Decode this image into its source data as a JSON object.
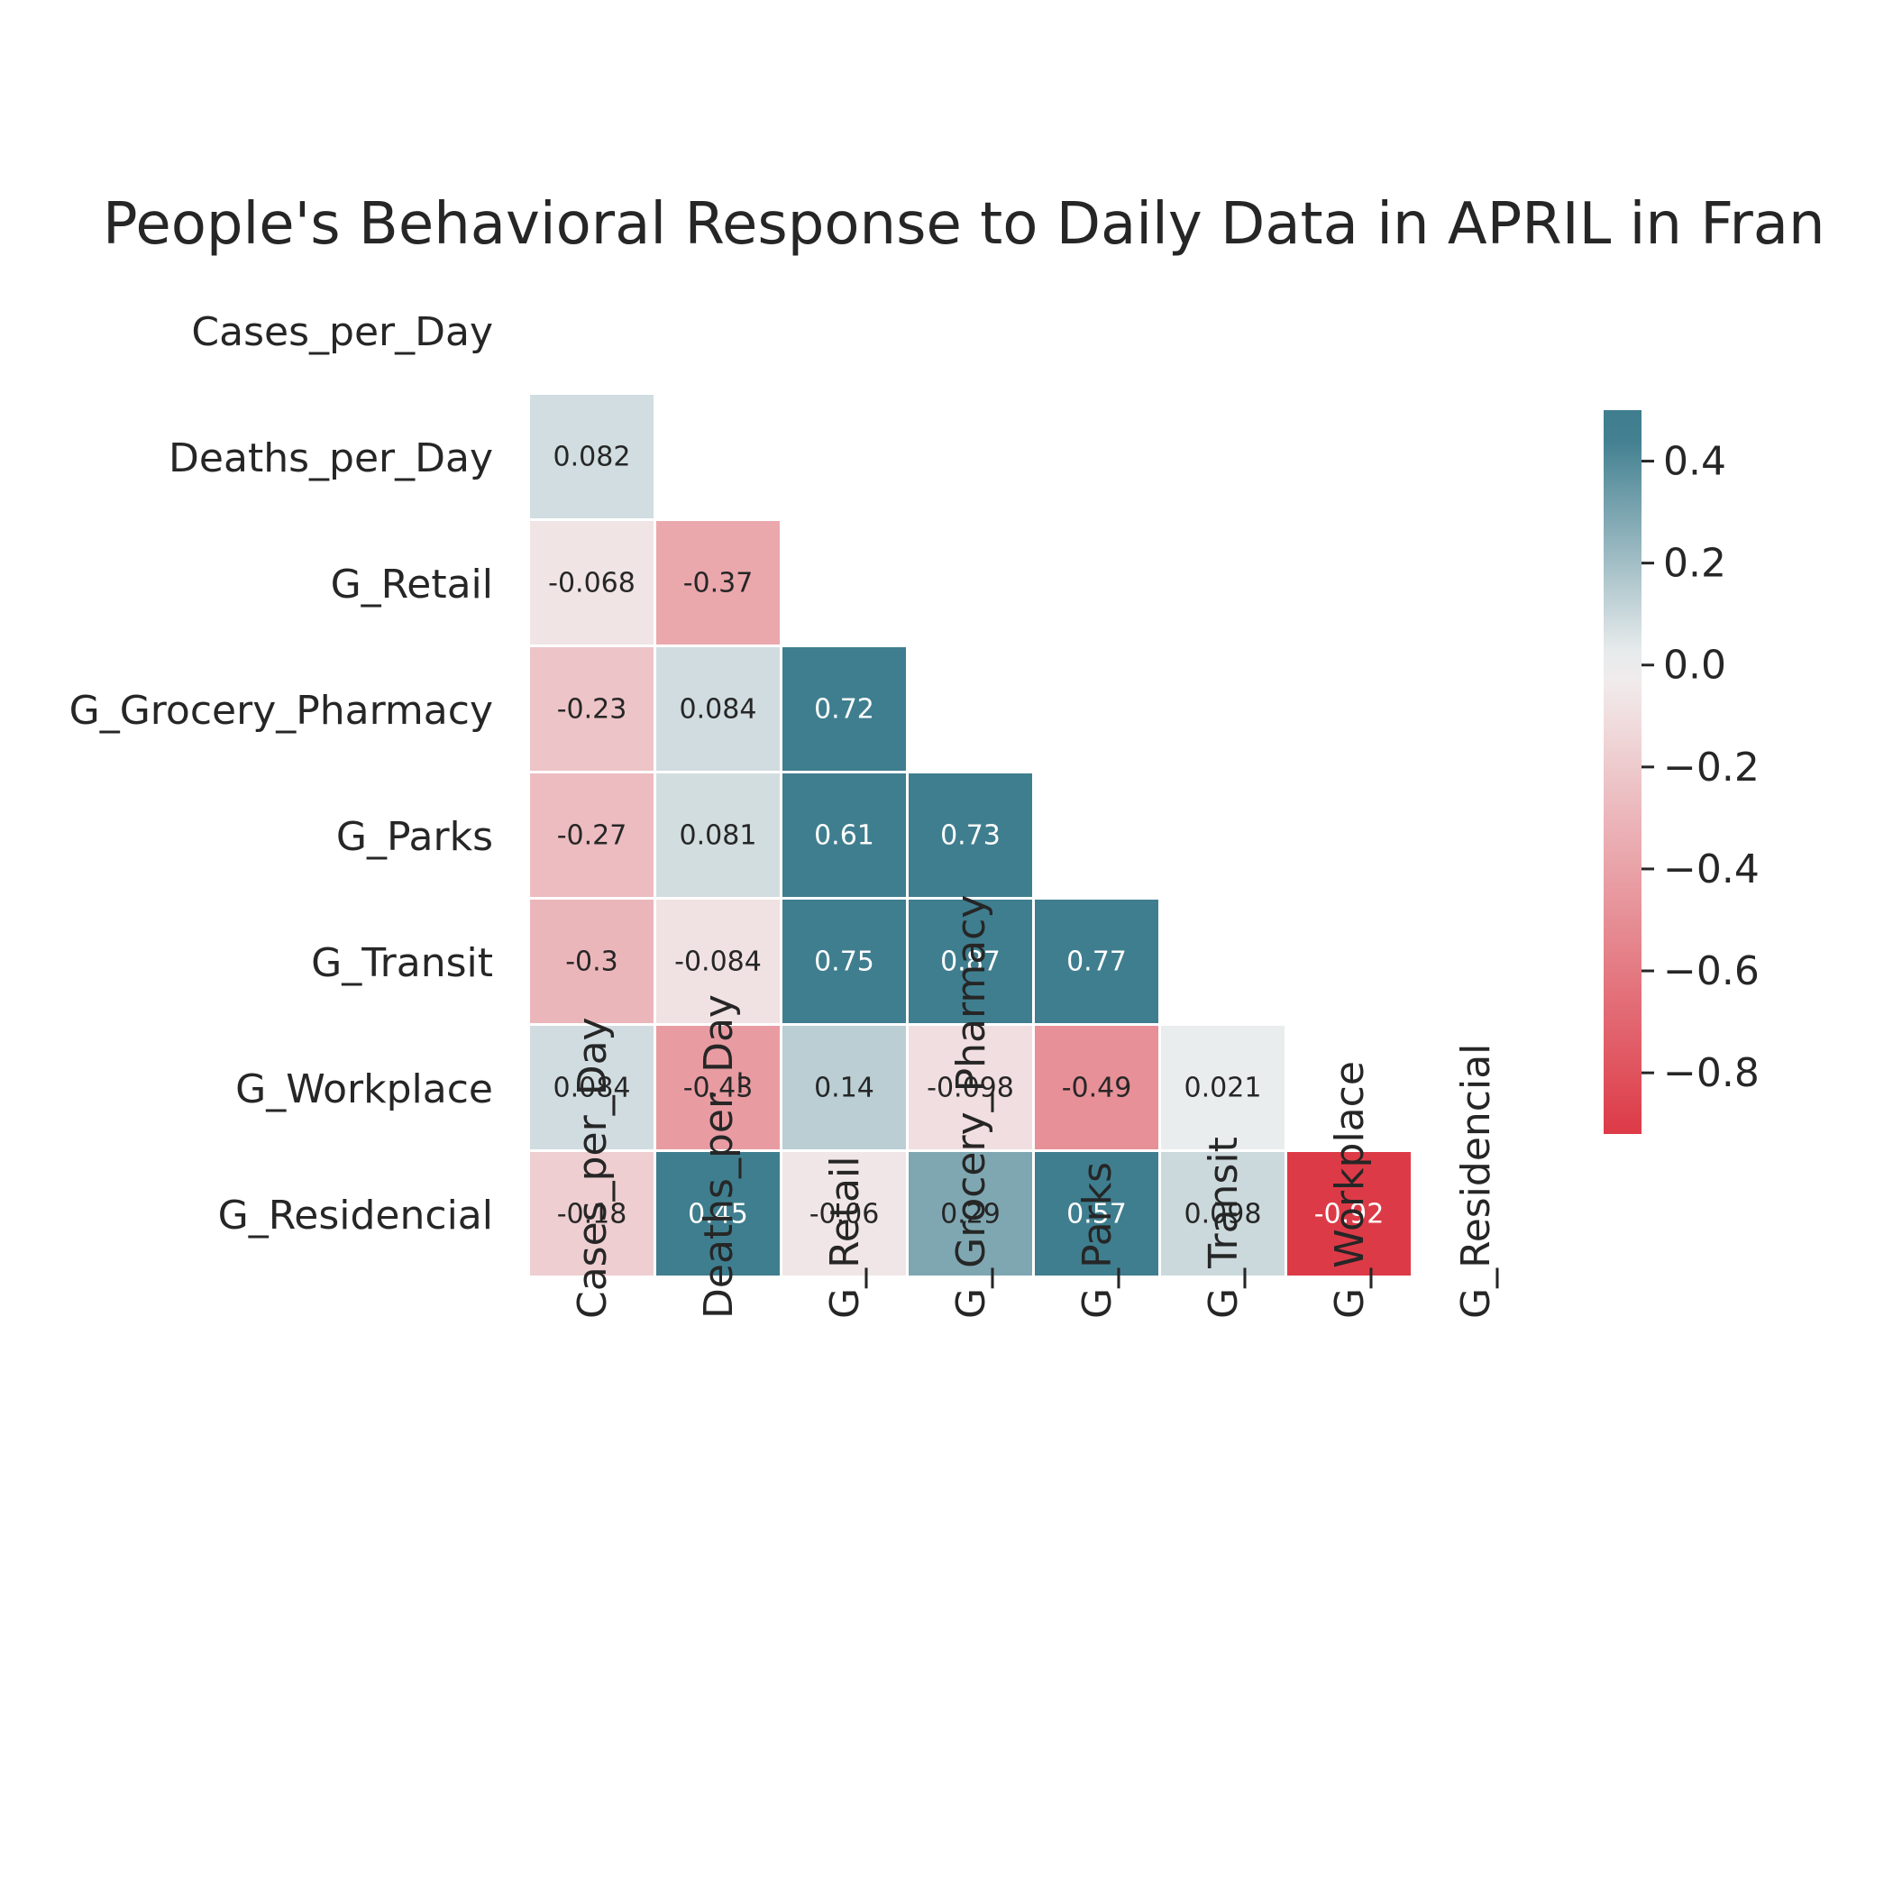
{
  "chart_data": {
    "type": "heatmap",
    "title": "People's Behavioral Response to Daily Data in APRIL in Fran",
    "variables": [
      "Cases_per_Day",
      "Deaths_per_Day",
      "G_Retail",
      "G_Grocery_Pharmacy",
      "G_Parks",
      "G_Transit",
      "G_Workplace",
      "G_Residencial"
    ],
    "mask": "upper-triangle-including-diagonal",
    "matrix": [
      [
        null,
        null,
        null,
        null,
        null,
        null,
        null,
        null
      ],
      [
        0.082,
        null,
        null,
        null,
        null,
        null,
        null,
        null
      ],
      [
        -0.068,
        -0.37,
        null,
        null,
        null,
        null,
        null,
        null
      ],
      [
        -0.23,
        0.084,
        0.72,
        null,
        null,
        null,
        null,
        null
      ],
      [
        -0.27,
        0.081,
        0.61,
        0.73,
        null,
        null,
        null,
        null
      ],
      [
        -0.3,
        -0.084,
        0.75,
        0.87,
        0.77,
        null,
        null,
        null
      ],
      [
        0.084,
        -0.43,
        0.14,
        -0.098,
        -0.49,
        0.021,
        null,
        null
      ],
      [
        -0.18,
        0.45,
        -0.06,
        0.29,
        0.57,
        0.098,
        -0.92,
        null
      ]
    ],
    "labels": [
      [
        null,
        null,
        null,
        null,
        null,
        null,
        null,
        null
      ],
      [
        "0.082",
        null,
        null,
        null,
        null,
        null,
        null,
        null
      ],
      [
        "-0.068",
        "-0.37",
        null,
        null,
        null,
        null,
        null,
        null
      ],
      [
        "-0.23",
        "0.084",
        "0.72",
        null,
        null,
        null,
        null,
        null
      ],
      [
        "-0.27",
        "0.081",
        "0.61",
        "0.73",
        null,
        null,
        null,
        null
      ],
      [
        "-0.3",
        "-0.084",
        "0.75",
        "0.87",
        "0.77",
        null,
        null,
        null
      ],
      [
        "0.084",
        "-0.43",
        "0.14",
        "-0.098",
        "-0.49",
        "0.021",
        null,
        null
      ],
      [
        "-0.18",
        "0.45",
        "-0.06",
        "0.29",
        "0.57",
        "0.098",
        "-0.92",
        null
      ]
    ],
    "colorbar": {
      "vmin": -0.92,
      "vmax": 0.5,
      "ticks": [
        0.4,
        0.2,
        0.0,
        -0.2,
        -0.4,
        -0.6,
        -0.8
      ],
      "tick_labels": [
        "0.4",
        "0.2",
        "0.0",
        "−0.2",
        "−0.4",
        "−0.6",
        "−0.8"
      ],
      "colormap": "diverging red-to-teal",
      "color_low": "#dd3a47",
      "color_mid": "#f2f2f2",
      "color_high": "#3f7e8f"
    },
    "grid": false,
    "cell_border_color": "#ffffff"
  }
}
